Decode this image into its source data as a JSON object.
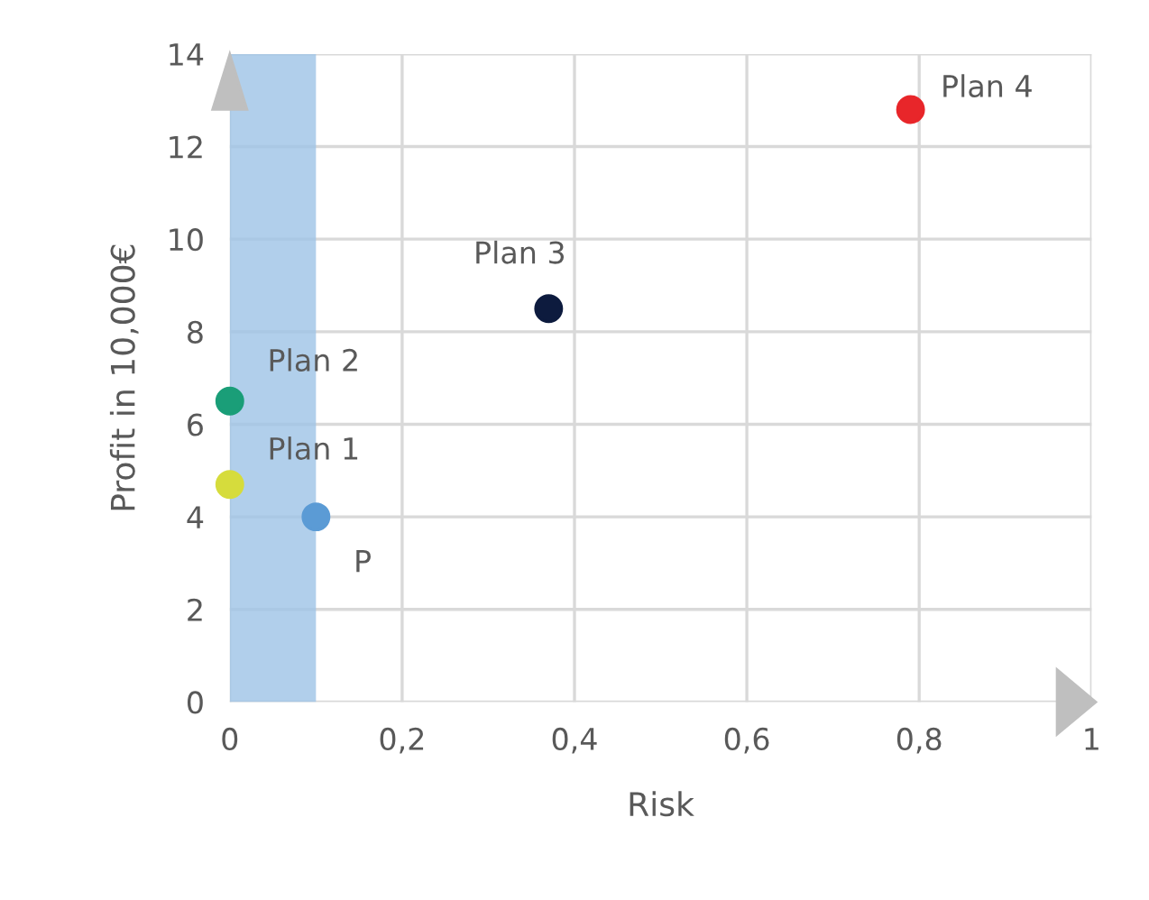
{
  "chart_data": {
    "type": "scatter",
    "xlabel": "Risk",
    "ylabel": "Profit in 10,000€",
    "series": [
      {
        "marker": "circle",
        "x": [
          0,
          0,
          0.1,
          0.37,
          0.79
        ],
        "values": [
          4.7,
          6.5,
          4.0,
          8.5,
          12.8
        ],
        "colors": [
          "#d6dc3c",
          "#1a9e78",
          "#5b9bd5",
          "#0d1b3e",
          "#e8262a"
        ]
      }
    ],
    "annotations": [
      {
        "text": "Plan 1",
        "x": 0,
        "y": 4.7
      },
      {
        "text": "Plan 2",
        "x": 0,
        "y": 6.5
      },
      {
        "text": "P",
        "x": 0.1,
        "y": 4.0
      },
      {
        "text": "Plan 3",
        "x": 0.37,
        "y": 8.5
      },
      {
        "text": "Plan 4",
        "x": 0.79,
        "y": 12.8
      }
    ],
    "xlim": [
      0,
      1
    ],
    "ylim": [
      0,
      14
    ],
    "xticks": [
      0,
      {
        "value": 0.2,
        "label": "0,2"
      },
      {
        "value": 0.4,
        "label": "0,4"
      },
      {
        "value": 0.6,
        "label": "0,6"
      },
      {
        "value": 0.8,
        "label": "0,8"
      },
      1
    ],
    "yticks": [
      0,
      2,
      4,
      6,
      8,
      10,
      12,
      14
    ],
    "bands": [
      {
        "axis": "x",
        "from": 0,
        "to": 0.1,
        "color": "#9dc3e6"
      }
    ],
    "grid": true,
    "legend": false
  }
}
